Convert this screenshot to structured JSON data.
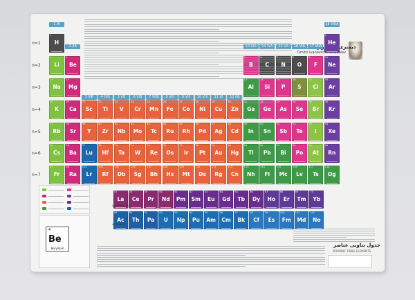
{
  "poster": {
    "title_fa": "دیمتری ایوانوویچ مندلیف",
    "title_en": "Dmitri Ivanovich Mendeleev",
    "bottom_title_fa": "جدول تناوبی عناصر",
    "bottom_subtitle": "PERIODIC TABLE ELEMENTS"
  },
  "colors": {
    "alkali": "#7fc241",
    "alkaline": "#cf2b7a",
    "transition": "#e8623b",
    "poor_metal": "#3e9a47",
    "nonmetal": "#e0358d",
    "metalloid": "#8dc347",
    "halogen": "#7f8f3d",
    "noble": "#6b3fa0",
    "lanthanide": "#6b2b91",
    "actinide": "#1b67b0",
    "unknown": "#4c4c4c"
  },
  "group_headers": [
    "1 IA",
    "2 IIA",
    "3 IIIB",
    "4 IVB",
    "5 VB",
    "6 VIB",
    "7 VIIB",
    "8 VIII",
    "9 VIII",
    "10 VIII",
    "11 IB",
    "12 IIB",
    "13 IIIA",
    "14 IVA",
    "15 VA",
    "16 VIA",
    "17 VIIA",
    "18 VIIIA"
  ],
  "period_labels": [
    "n=1",
    "n=2",
    "n=3",
    "n=4",
    "n=5",
    "n=6",
    "n=7"
  ],
  "series_labels": {
    "lanthanides": "LANTHANIDES",
    "actinides": "ACTINIDES"
  },
  "legend_example": {
    "symbol": "Be",
    "number": "4",
    "name": "Beryllium"
  },
  "elements": [
    {
      "s": "H",
      "n": 1,
      "g": 1,
      "p": 1,
      "c": "unknown"
    },
    {
      "s": "He",
      "n": 2,
      "g": 18,
      "p": 1,
      "c": "noble"
    },
    {
      "s": "Li",
      "n": 3,
      "g": 1,
      "p": 2,
      "c": "alkali"
    },
    {
      "s": "Be",
      "n": 4,
      "g": 2,
      "p": 2,
      "c": "alkaline"
    },
    {
      "s": "B",
      "n": 5,
      "g": 13,
      "p": 2,
      "c": "nonmetal"
    },
    {
      "s": "C",
      "n": 6,
      "g": 14,
      "p": 2,
      "c": "unknown"
    },
    {
      "s": "N",
      "n": 7,
      "g": 15,
      "p": 2,
      "c": "unknown"
    },
    {
      "s": "O",
      "n": 8,
      "g": 16,
      "p": 2,
      "c": "unknown"
    },
    {
      "s": "F",
      "n": 9,
      "g": 17,
      "p": 2,
      "c": "nonmetal"
    },
    {
      "s": "Ne",
      "n": 10,
      "g": 18,
      "p": 2,
      "c": "noble"
    },
    {
      "s": "Na",
      "n": 11,
      "g": 1,
      "p": 3,
      "c": "alkali"
    },
    {
      "s": "Mg",
      "n": 12,
      "g": 2,
      "p": 3,
      "c": "alkaline"
    },
    {
      "s": "Al",
      "n": 13,
      "g": 13,
      "p": 3,
      "c": "poor_metal"
    },
    {
      "s": "Si",
      "n": 14,
      "g": 14,
      "p": 3,
      "c": "nonmetal"
    },
    {
      "s": "P",
      "n": 15,
      "g": 15,
      "p": 3,
      "c": "nonmetal"
    },
    {
      "s": "S",
      "n": 16,
      "g": 16,
      "p": 3,
      "c": "halogen"
    },
    {
      "s": "Cl",
      "n": 17,
      "g": 17,
      "p": 3,
      "c": "metalloid"
    },
    {
      "s": "Ar",
      "n": 18,
      "g": 18,
      "p": 3,
      "c": "noble"
    },
    {
      "s": "K",
      "n": 19,
      "g": 1,
      "p": 4,
      "c": "alkali"
    },
    {
      "s": "Ca",
      "n": 20,
      "g": 2,
      "p": 4,
      "c": "alkaline"
    },
    {
      "s": "Sc",
      "n": 21,
      "g": 3,
      "p": 4,
      "c": "transition"
    },
    {
      "s": "Ti",
      "n": 22,
      "g": 4,
      "p": 4,
      "c": "transition"
    },
    {
      "s": "V",
      "n": 23,
      "g": 5,
      "p": 4,
      "c": "transition"
    },
    {
      "s": "Cr",
      "n": 24,
      "g": 6,
      "p": 4,
      "c": "transition"
    },
    {
      "s": "Mn",
      "n": 25,
      "g": 7,
      "p": 4,
      "c": "transition"
    },
    {
      "s": "Fe",
      "n": 26,
      "g": 8,
      "p": 4,
      "c": "transition"
    },
    {
      "s": "Co",
      "n": 27,
      "g": 9,
      "p": 4,
      "c": "transition"
    },
    {
      "s": "Ni",
      "n": 28,
      "g": 10,
      "p": 4,
      "c": "transition"
    },
    {
      "s": "Cu",
      "n": 29,
      "g": 11,
      "p": 4,
      "c": "transition"
    },
    {
      "s": "Zn",
      "n": 30,
      "g": 12,
      "p": 4,
      "c": "transition"
    },
    {
      "s": "Ga",
      "n": 31,
      "g": 13,
      "p": 4,
      "c": "poor_metal"
    },
    {
      "s": "Ge",
      "n": 32,
      "g": 14,
      "p": 4,
      "c": "nonmetal"
    },
    {
      "s": "As",
      "n": 33,
      "g": 15,
      "p": 4,
      "c": "nonmetal"
    },
    {
      "s": "Se",
      "n": 34,
      "g": 16,
      "p": 4,
      "c": "nonmetal"
    },
    {
      "s": "Br",
      "n": 35,
      "g": 17,
      "p": 4,
      "c": "metalloid"
    },
    {
      "s": "Kr",
      "n": 36,
      "g": 18,
      "p": 4,
      "c": "noble"
    },
    {
      "s": "Rb",
      "n": 37,
      "g": 1,
      "p": 5,
      "c": "alkali"
    },
    {
      "s": "Sr",
      "n": 38,
      "g": 2,
      "p": 5,
      "c": "alkaline"
    },
    {
      "s": "Y",
      "n": 39,
      "g": 3,
      "p": 5,
      "c": "transition"
    },
    {
      "s": "Zr",
      "n": 40,
      "g": 4,
      "p": 5,
      "c": "transition"
    },
    {
      "s": "Nb",
      "n": 41,
      "g": 5,
      "p": 5,
      "c": "transition"
    },
    {
      "s": "Mo",
      "n": 42,
      "g": 6,
      "p": 5,
      "c": "transition"
    },
    {
      "s": "Tc",
      "n": 43,
      "g": 7,
      "p": 5,
      "c": "transition"
    },
    {
      "s": "Ru",
      "n": 44,
      "g": 8,
      "p": 5,
      "c": "transition"
    },
    {
      "s": "Rh",
      "n": 45,
      "g": 9,
      "p": 5,
      "c": "transition"
    },
    {
      "s": "Pd",
      "n": 46,
      "g": 10,
      "p": 5,
      "c": "transition"
    },
    {
      "s": "Ag",
      "n": 47,
      "g": 11,
      "p": 5,
      "c": "transition"
    },
    {
      "s": "Cd",
      "n": 48,
      "g": 12,
      "p": 5,
      "c": "transition"
    },
    {
      "s": "In",
      "n": 49,
      "g": 13,
      "p": 5,
      "c": "poor_metal"
    },
    {
      "s": "Sn",
      "n": 50,
      "g": 14,
      "p": 5,
      "c": "poor_metal"
    },
    {
      "s": "Sb",
      "n": 51,
      "g": 15,
      "p": 5,
      "c": "nonmetal"
    },
    {
      "s": "Te",
      "n": 52,
      "g": 16,
      "p": 5,
      "c": "nonmetal"
    },
    {
      "s": "I",
      "n": 53,
      "g": 17,
      "p": 5,
      "c": "metalloid"
    },
    {
      "s": "Xe",
      "n": 54,
      "g": 18,
      "p": 5,
      "c": "noble"
    },
    {
      "s": "Cs",
      "n": 55,
      "g": 1,
      "p": 6,
      "c": "alkali"
    },
    {
      "s": "Ba",
      "n": 56,
      "g": 2,
      "p": 6,
      "c": "alkaline"
    },
    {
      "s": "Lu",
      "n": 71,
      "g": 3,
      "p": 6,
      "c": "actinide"
    },
    {
      "s": "Hf",
      "n": 72,
      "g": 4,
      "p": 6,
      "c": "transition"
    },
    {
      "s": "Ta",
      "n": 73,
      "g": 5,
      "p": 6,
      "c": "transition"
    },
    {
      "s": "W",
      "n": 74,
      "g": 6,
      "p": 6,
      "c": "transition"
    },
    {
      "s": "Re",
      "n": 75,
      "g": 7,
      "p": 6,
      "c": "transition"
    },
    {
      "s": "Os",
      "n": 76,
      "g": 8,
      "p": 6,
      "c": "transition"
    },
    {
      "s": "Ir",
      "n": 77,
      "g": 9,
      "p": 6,
      "c": "transition"
    },
    {
      "s": "Pt",
      "n": 78,
      "g": 10,
      "p": 6,
      "c": "transition"
    },
    {
      "s": "Au",
      "n": 79,
      "g": 11,
      "p": 6,
      "c": "transition"
    },
    {
      "s": "Hg",
      "n": 80,
      "g": 12,
      "p": 6,
      "c": "transition"
    },
    {
      "s": "Tl",
      "n": 81,
      "g": 13,
      "p": 6,
      "c": "poor_metal"
    },
    {
      "s": "Pb",
      "n": 82,
      "g": 14,
      "p": 6,
      "c": "poor_metal"
    },
    {
      "s": "Bi",
      "n": 83,
      "g": 15,
      "p": 6,
      "c": "poor_metal"
    },
    {
      "s": "Po",
      "n": 84,
      "g": 16,
      "p": 6,
      "c": "nonmetal"
    },
    {
      "s": "At",
      "n": 85,
      "g": 17,
      "p": 6,
      "c": "metalloid"
    },
    {
      "s": "Rn",
      "n": 86,
      "g": 18,
      "p": 6,
      "c": "noble"
    },
    {
      "s": "Fr",
      "n": 87,
      "g": 1,
      "p": 7,
      "c": "alkali"
    },
    {
      "s": "Ra",
      "n": 88,
      "g": 2,
      "p": 7,
      "c": "alkaline"
    },
    {
      "s": "Lr",
      "n": 103,
      "g": 3,
      "p": 7,
      "c": "actinide"
    },
    {
      "s": "Rf",
      "n": 104,
      "g": 4,
      "p": 7,
      "c": "transition"
    },
    {
      "s": "Db",
      "n": 105,
      "g": 5,
      "p": 7,
      "c": "transition"
    },
    {
      "s": "Sg",
      "n": 106,
      "g": 6,
      "p": 7,
      "c": "transition"
    },
    {
      "s": "Bh",
      "n": 107,
      "g": 7,
      "p": 7,
      "c": "transition"
    },
    {
      "s": "Hs",
      "n": 108,
      "g": 8,
      "p": 7,
      "c": "transition"
    },
    {
      "s": "Mt",
      "n": 109,
      "g": 9,
      "p": 7,
      "c": "transition"
    },
    {
      "s": "Ds",
      "n": 110,
      "g": 10,
      "p": 7,
      "c": "transition"
    },
    {
      "s": "Rg",
      "n": 111,
      "g": 11,
      "p": 7,
      "c": "transition"
    },
    {
      "s": "Cn",
      "n": 112,
      "g": 12,
      "p": 7,
      "c": "transition"
    },
    {
      "s": "Nh",
      "n": 113,
      "g": 13,
      "p": 7,
      "c": "poor_metal"
    },
    {
      "s": "Fl",
      "n": 114,
      "g": 14,
      "p": 7,
      "c": "poor_metal"
    },
    {
      "s": "Mc",
      "n": 115,
      "g": 15,
      "p": 7,
      "c": "poor_metal"
    },
    {
      "s": "Lv",
      "n": 116,
      "g": 16,
      "p": 7,
      "c": "poor_metal"
    },
    {
      "s": "Ts",
      "n": 117,
      "g": 17,
      "p": 7,
      "c": "poor_metal"
    },
    {
      "s": "Og",
      "n": 118,
      "g": 18,
      "p": 7,
      "c": "poor_metal"
    }
  ],
  "lanthanides": [
    "La",
    "Ce",
    "Pr",
    "Nd",
    "Pm",
    "Sm",
    "Eu",
    "Gd",
    "Tb",
    "Dy",
    "Ho",
    "Er",
    "Tm",
    "Yb"
  ],
  "actinides": [
    "Ac",
    "Th",
    "Pa",
    "U",
    "Np",
    "Pu",
    "Am",
    "Cm",
    "Bk",
    "Cf",
    "Es",
    "Fm",
    "Md",
    "No"
  ]
}
